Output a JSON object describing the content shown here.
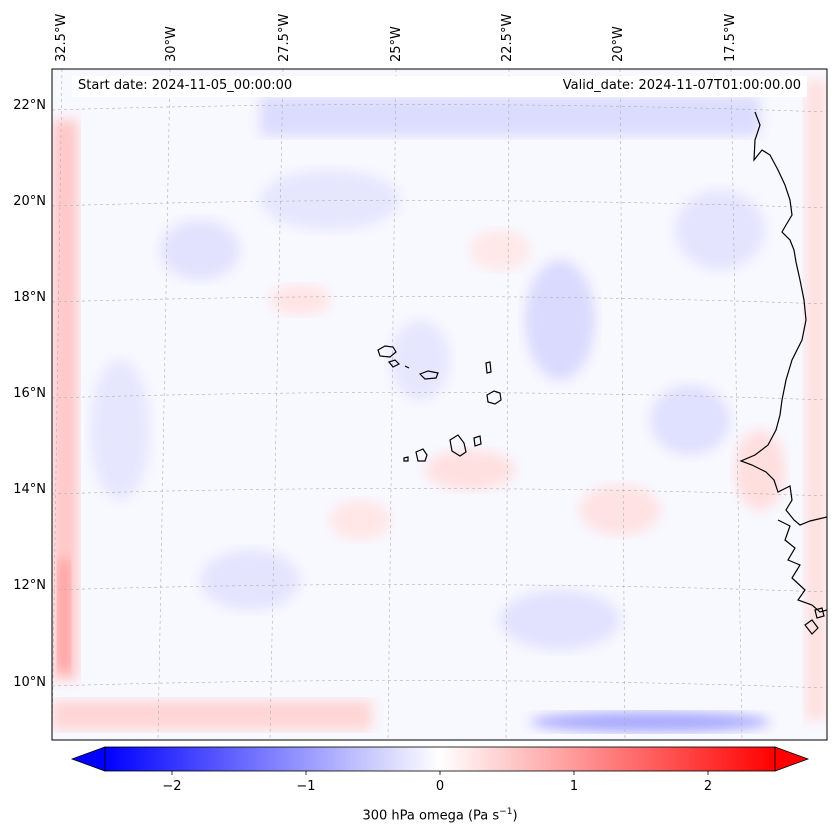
{
  "map": {
    "start_date": "Start date: 2024-11-05_00:00:00",
    "valid_date": "Valid_date: 2024-11-07T01:00:00.00",
    "lon_labels": [
      "32.5°W",
      "30°W",
      "27.5°W",
      "25°W",
      "22.5°W",
      "20°W",
      "17.5°W"
    ],
    "lat_labels": [
      "22°N",
      "20°N",
      "18°N",
      "16°N",
      "14°N",
      "12°N",
      "10°N"
    ],
    "field": "300 hPa omega",
    "colormap": "bwr",
    "colors": {
      "negative": "#0000ff",
      "neutral": "#ffffff",
      "positive": "#ff0000",
      "coast": "#000000",
      "grid": "#b0b0b0"
    }
  },
  "colorbar": {
    "title": "300 hPa omega (Pa s",
    "title_sup": "−1",
    "title_end": ")",
    "ticks": [
      "−2",
      "−1",
      "0",
      "1",
      "2"
    ],
    "tick_values": [
      -2,
      -1,
      0,
      1,
      2
    ],
    "vmin": -2.5,
    "vmax": 2.5,
    "extend": "both"
  }
}
